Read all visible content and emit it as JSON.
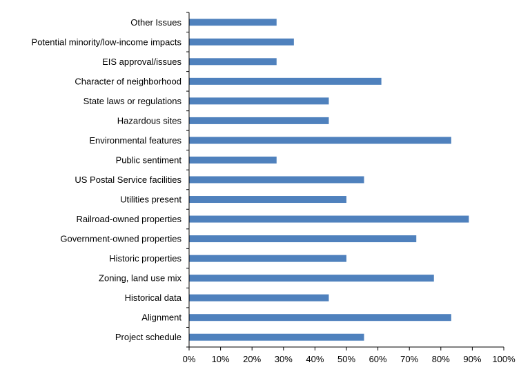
{
  "chart_data": {
    "type": "bar",
    "orientation": "horizontal",
    "title": "",
    "xlabel": "",
    "ylabel": "",
    "categories": [
      "Other Issues",
      "Potential minority/low-income impacts",
      "EIS approval/issues",
      "Character of neighborhood",
      "State laws or regulations",
      "Hazardous sites",
      "Environmental features",
      "Public sentiment",
      "US Postal Service facilities",
      "Utilities present",
      "Railroad-owned properties",
      "Government-owned properties",
      "Historic properties",
      "Zoning, land use mix",
      "Historical data",
      "Alignment",
      "Project schedule"
    ],
    "values": [
      27.8,
      33.3,
      27.8,
      61.1,
      44.4,
      44.4,
      83.3,
      27.8,
      55.6,
      50.0,
      88.9,
      72.2,
      50.0,
      77.8,
      44.4,
      83.3,
      55.6
    ],
    "xlim": [
      0,
      100
    ],
    "xticks": [
      "0%",
      "10%",
      "20%",
      "30%",
      "40%",
      "50%",
      "60%",
      "70%",
      "80%",
      "90%",
      "100%"
    ],
    "grid": false,
    "legend": "none",
    "bar_color": "#4f81bd"
  }
}
